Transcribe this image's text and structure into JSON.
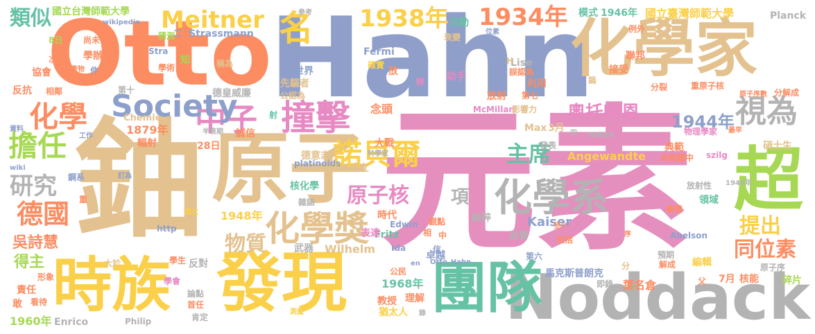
{
  "words": [
    {
      "text": "元素",
      "color": "#e58fbf"
    },
    {
      "text": "鈾",
      "color": "#e3c28f"
    },
    {
      "text": "Hahn",
      "color": "#8f9fc9"
    },
    {
      "text": "原子",
      "color": "#e3c28f"
    },
    {
      "text": "Otto",
      "color": "#fc8d62"
    },
    {
      "text": "Noddack",
      "color": "#b3b3b3"
    },
    {
      "text": "化學家",
      "color": "#e3c28f"
    },
    {
      "text": "發現",
      "color": "#fad04a"
    },
    {
      "text": "團隊",
      "color": "#66c2a5"
    },
    {
      "text": "時族",
      "color": "#fad04a"
    },
    {
      "text": "超",
      "color": "#a6d854"
    },
    {
      "text": "撞擊",
      "color": "#e78ac3"
    },
    {
      "text": "化學系",
      "color": "#b3b3b3"
    },
    {
      "text": "化學獎",
      "color": "#e3c28f"
    },
    {
      "text": "中子",
      "color": "#e78ac3"
    },
    {
      "text": "諾貝爾",
      "color": "#fad04a"
    },
    {
      "text": "Society",
      "color": "#8da0cb"
    },
    {
      "text": "Meitner",
      "color": "#fad04a"
    },
    {
      "text": "1934年",
      "color": "#fc8d62"
    },
    {
      "text": "1938年",
      "color": "#fad04a"
    },
    {
      "text": "名",
      "color": "#fad04a"
    },
    {
      "text": "化學",
      "color": "#fc8d62"
    },
    {
      "text": "視為",
      "color": "#b3b3b3"
    },
    {
      "text": "擔任",
      "color": "#a6d854"
    },
    {
      "text": "研究",
      "color": "#b3b3b3"
    },
    {
      "text": "德國",
      "color": "#fc8d62"
    },
    {
      "text": "原子核",
      "color": "#e78ac3"
    },
    {
      "text": "主席",
      "color": "#66c2a5"
    },
    {
      "text": "奧托哈恩",
      "color": "#e78ac3"
    },
    {
      "text": "1944年",
      "color": "#8da0cb"
    },
    {
      "text": "類似",
      "color": "#66c2a5"
    },
    {
      "text": "同位素",
      "color": "#fc8d62"
    },
    {
      "text": "提出",
      "color": "#fad04a"
    },
    {
      "text": "物質",
      "color": "#e3c28f"
    },
    {
      "text": "項",
      "color": "#b3b3b3"
    },
    {
      "text": "國立台灣師範大學",
      "color": "#a6d854"
    },
    {
      "text": "國立臺灣師範大學",
      "color": "#fad04a"
    },
    {
      "text": "1946年",
      "color": "#66c2a5"
    },
    {
      "text": "模式",
      "color": "#66c2a5"
    },
    {
      "text": "Planck",
      "color": "#b3b3b3"
    },
    {
      "text": "得主",
      "color": "#a6d854"
    },
    {
      "text": "吳詩慧",
      "color": "#fc8d62"
    },
    {
      "text": "1960年",
      "color": "#a6d854"
    },
    {
      "text": "1879年",
      "color": "#fc8d62"
    },
    {
      "text": "1948年",
      "color": "#fad04a"
    },
    {
      "text": "1968年",
      "color": "#66c2a5"
    },
    {
      "text": "Kaiser",
      "color": "#8da0cb"
    },
    {
      "text": "Wilhelm",
      "color": "#e3c28f"
    },
    {
      "text": "Angewandte",
      "color": "#fad04a"
    },
    {
      "text": "馬克斯普朗克",
      "color": "#8da0cb"
    },
    {
      "text": "葉名倉",
      "color": "#fc8d62"
    },
    {
      "text": "德皇威廉",
      "color": "#b3b3b3"
    },
    {
      "text": "核化學",
      "color": "#66c2a5"
    },
    {
      "text": "Strassmann",
      "color": "#8da0cb"
    },
    {
      "text": "Fermi",
      "color": "#8da0cb"
    },
    {
      "text": "Lise",
      "color": "#b3b3b3"
    },
    {
      "text": "Enrico",
      "color": "#b3b3b3"
    },
    {
      "text": "Philip",
      "color": "#b3b3b3"
    },
    {
      "text": "McMillan",
      "color": "#e78ac3"
    },
    {
      "text": "Edwin",
      "color": "#8da0cb"
    },
    {
      "text": "Fritz",
      "color": "#66c2a5"
    },
    {
      "text": "Ida",
      "color": "#8da0cb"
    },
    {
      "text": "Max",
      "color": "#e3c28f"
    },
    {
      "text": "3月",
      "color": "#e3c28f"
    },
    {
      "text": "mann",
      "color": "#b3b3b3"
    },
    {
      "text": "Chemie",
      "color": "#e3c28f"
    },
    {
      "text": "wikipedia",
      "color": "#8da0cb"
    },
    {
      "text": "wiki",
      "color": "#8da0cb"
    },
    {
      "text": "platinoids",
      "color": "#8da0cb"
    },
    {
      "text": "szilg",
      "color": "#e78ac3"
    },
    {
      "text": "http",
      "color": "#8da0cb"
    },
    {
      "text": "org",
      "color": "#8da0cb"
    },
    {
      "text": "en",
      "color": "#8da0cb"
    },
    {
      "text": "Otto_Hahn",
      "color": "#8da0cb"
    },
    {
      "text": "Abelson",
      "color": "#8da0cb"
    },
    {
      "text": "Stra",
      "color": "#8da0cb"
    },
    {
      "text": "H",
      "color": "#e3c28f"
    },
    {
      "text": "猜測",
      "color": "#a6d854"
    },
    {
      "text": "學辦",
      "color": "#fc8d62"
    },
    {
      "text": "學術",
      "color": "#fc8d62"
    },
    {
      "text": "尚未",
      "color": "#fc8d62"
    },
    {
      "text": "8日",
      "color": "#a6d854"
    },
    {
      "text": "次",
      "color": "#fc8d62"
    },
    {
      "text": "協會",
      "color": "#fc8d62"
    },
    {
      "text": "反抗",
      "color": "#fc8d62"
    },
    {
      "text": "相鄰",
      "color": "#fc8d62"
    },
    {
      "text": "資料",
      "color": "#8da0cb"
    },
    {
      "text": "工作",
      "color": "#8da0cb"
    },
    {
      "text": "輻射",
      "color": "#fc8d62"
    },
    {
      "text": "28日",
      "color": "#fc8d62"
    },
    {
      "text": "半衰期",
      "color": "#b3b3b3"
    },
    {
      "text": "誠信",
      "color": "#fc8d62"
    },
    {
      "text": "射",
      "color": "#66c2a5"
    },
    {
      "text": "念頭",
      "color": "#fc8d62"
    },
    {
      "text": "先驅者",
      "color": "#e3c28f"
    },
    {
      "text": "公認為",
      "color": "#e3c28f"
    },
    {
      "text": "世界",
      "color": "#8da0cb"
    },
    {
      "text": "稱為",
      "color": "#e3c28f"
    },
    {
      "text": "知",
      "color": "#a6d854"
    },
    {
      "text": "二",
      "color": "#8da0cb"
    },
    {
      "text": "活動",
      "color": "#66c2a5"
    },
    {
      "text": "核",
      "color": "#8da0cb"
    },
    {
      "text": "助手",
      "color": "#e78ac3"
    },
    {
      "text": "放",
      "color": "#fc8d62"
    },
    {
      "text": "確實",
      "color": "#fad04a"
    },
    {
      "text": "參考",
      "color": "#b3b3b3"
    },
    {
      "text": "位素",
      "color": "#8da0cb"
    },
    {
      "text": "衰變",
      "color": "#e3c28f"
    },
    {
      "text": "輕",
      "color": "#e78ac3"
    },
    {
      "text": "誤認為",
      "color": "#fc8d62"
    },
    {
      "text": "利用",
      "color": "#fc8d62"
    },
    {
      "text": "放射",
      "color": "#fc8d62"
    },
    {
      "text": "第七",
      "color": "#fc8d62"
    },
    {
      "text": "影響力",
      "color": "#e3c28f"
    },
    {
      "text": "第六",
      "color": "#8da0cb"
    },
    {
      "text": "分裂",
      "color": "#fc8d62"
    },
    {
      "text": "重原子核",
      "color": "#fc8d62"
    },
    {
      "text": "原子序數",
      "color": "#fc8d62"
    },
    {
      "text": "分解成",
      "color": "#fc8d62"
    },
    {
      "text": "聯邦",
      "color": "#fc8d62"
    },
    {
      "text": "接受",
      "color": "#fc8d62"
    },
    {
      "text": "鎢",
      "color": "#e3c28f"
    },
    {
      "text": "例外",
      "color": "#fc8d62"
    },
    {
      "text": "物理學家",
      "color": "#e78ac3"
    },
    {
      "text": "最早",
      "color": "#fc8d62"
    },
    {
      "text": "典範",
      "color": "#fc8d62"
    },
    {
      "text": "碩士生",
      "color": "#e3c28f"
    },
    {
      "text": "共和國中",
      "color": "#fc8d62"
    },
    {
      "text": "發表",
      "color": "#b3b3b3"
    },
    {
      "text": "四",
      "color": "#b3b3b3"
    },
    {
      "text": "放射性",
      "color": "#b3b3b3"
    },
    {
      "text": "領域",
      "color": "#66c2a5"
    },
    {
      "text": "1940年",
      "color": "#b3b3b3"
    },
    {
      "text": "事情",
      "color": "#fc8d62"
    },
    {
      "text": "包括",
      "color": "#fc8d62"
    },
    {
      "text": "至少",
      "color": "#fc8d62"
    },
    {
      "text": "序",
      "color": "#fc8d62"
    },
    {
      "text": "預期",
      "color": "#b3b3b3"
    },
    {
      "text": "解成",
      "color": "#fc8d62"
    },
    {
      "text": "編輯",
      "color": "#fad04a"
    },
    {
      "text": "7月",
      "color": "#fc8d62"
    },
    {
      "text": "核能",
      "color": "#fc8d62"
    },
    {
      "text": "原子序",
      "color": "#b3b3b3"
    },
    {
      "text": "碎片",
      "color": "#a6d854"
    },
    {
      "text": "父",
      "color": "#fc8d62"
    },
    {
      "text": "即錄",
      "color": "#b3b3b3"
    },
    {
      "text": "分",
      "color": "#e3c28f"
    },
    {
      "text": "迫害",
      "color": "#b3b3b3"
    },
    {
      "text": "納粹",
      "color": "#b3b3b3"
    },
    {
      "text": "觀點",
      "color": "#fc8d62"
    },
    {
      "text": "中",
      "color": "#fc8d62"
    },
    {
      "text": "相",
      "color": "#fc8d62"
    },
    {
      "text": "信",
      "color": "#8da0cb"
    },
    {
      "text": "卓越",
      "color": "#8da0cb"
    },
    {
      "text": "理解",
      "color": "#fc8d62"
    },
    {
      "text": "猶太人",
      "color": "#fad04a"
    },
    {
      "text": "教授",
      "color": "#fc8d62"
    },
    {
      "text": "公民",
      "color": "#fc8d62"
    },
    {
      "text": "錄",
      "color": "#b3b3b3"
    },
    {
      "text": "測量",
      "color": "#fad04a"
    },
    {
      "text": "表達",
      "color": "#e78ac3"
    },
    {
      "text": "時代",
      "color": "#fc8d62"
    },
    {
      "text": "成立",
      "color": "#e3c28f"
    },
    {
      "text": "德意志",
      "color": "#e3c28f"
    },
    {
      "text": "科學家",
      "color": "#b3b3b3"
    },
    {
      "text": "大戰",
      "color": "#fc8d62"
    },
    {
      "text": "武器",
      "color": "#b3b3b3"
    },
    {
      "text": "雜誌",
      "color": "#b3b3b3"
    },
    {
      "text": "建立",
      "color": "#fad04a"
    },
    {
      "text": "反對",
      "color": "#b3b3b3"
    },
    {
      "text": "學生",
      "color": "#fc8d62"
    },
    {
      "text": "大於",
      "color": "#e3c28f"
    },
    {
      "text": "重",
      "color": "#fc8d62"
    },
    {
      "text": "鋼系",
      "color": "#8da0cb"
    },
    {
      "text": "訂為",
      "color": "#8da0cb"
    },
    {
      "text": "學會",
      "color": "#e78ac3"
    },
    {
      "text": "論點",
      "color": "#b3b3b3"
    },
    {
      "text": "首任",
      "color": "#fc8d62"
    },
    {
      "text": "肯定",
      "color": "#b3b3b3"
    },
    {
      "text": "責任",
      "color": "#fc8d62"
    },
    {
      "text": "看待",
      "color": "#fc8d62"
    },
    {
      "text": "敢",
      "color": "#fc8d62"
    },
    {
      "text": "形象",
      "color": "#fc8d62"
    },
    {
      "text": "產物",
      "color": "#fc8d62"
    },
    {
      "text": "件",
      "color": "#8da0cb"
    },
    {
      "text": "第十",
      "color": "#b3b3b3"
    }
  ]
}
